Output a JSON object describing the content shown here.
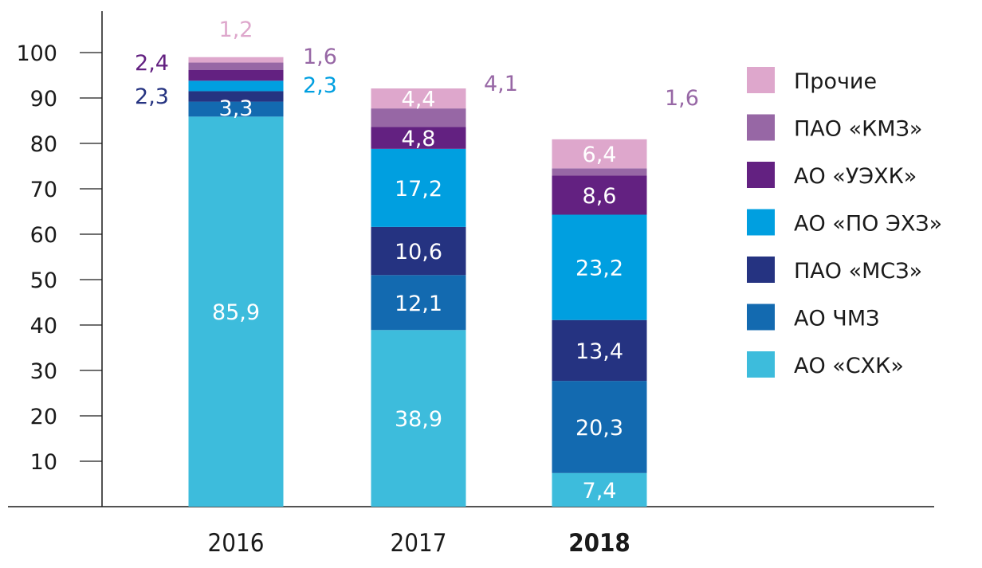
{
  "chart_data": {
    "type": "bar",
    "stacked": true,
    "title": "",
    "xlabel": "",
    "ylabel": "",
    "ylim": [
      0,
      100
    ],
    "yticks": [
      10,
      20,
      30,
      40,
      50,
      60,
      70,
      80,
      90,
      100
    ],
    "categories": [
      "2016",
      "2017",
      "2018"
    ],
    "highlight_category": "2018",
    "grid": false,
    "legend_position": "right",
    "series": [
      {
        "name": "АО «СХК»",
        "color": "#3dbcdc",
        "values": [
          85.9,
          38.9,
          7.4
        ],
        "labels": [
          "85,9",
          "38,9",
          "7,4"
        ]
      },
      {
        "name": "АО ЧМЗ",
        "color": "#136ab0",
        "values": [
          3.3,
          12.1,
          20.3
        ],
        "labels": [
          "3,3",
          "12,1",
          "20,3"
        ]
      },
      {
        "name": "ПАО «МСЗ»",
        "color": "#253381",
        "values": [
          2.3,
          10.6,
          13.4
        ],
        "labels": [
          "2,3",
          "10,6",
          "13,4"
        ]
      },
      {
        "name": "АО «ПО ЭХЗ»",
        "color": "#009fe0",
        "values": [
          2.3,
          17.2,
          23.2
        ],
        "labels": [
          "2,3",
          "17,2",
          "23,2"
        ]
      },
      {
        "name": "АО «УЭХК»",
        "color": "#632181",
        "values": [
          2.4,
          4.8,
          8.6
        ],
        "labels": [
          "2,4",
          "4,8",
          "8,6"
        ]
      },
      {
        "name": "ПАО «КМЗ»",
        "color": "#9767a5",
        "values": [
          1.6,
          4.1,
          1.6
        ],
        "labels": [
          "1,6",
          "4,1",
          "1,6"
        ]
      },
      {
        "name": "Прочие",
        "color": "#dea7cc",
        "values": [
          1.2,
          4.4,
          6.4
        ],
        "labels": [
          "1,2",
          "4,4",
          "6,4"
        ]
      }
    ],
    "legend_order": [
      "Прочие",
      "ПАО «КМЗ»",
      "АО «УЭХК»",
      "АО «ПО ЭХЗ»",
      "ПАО «МСЗ»",
      "АО ЧМЗ",
      "АО «СХК»"
    ]
  }
}
